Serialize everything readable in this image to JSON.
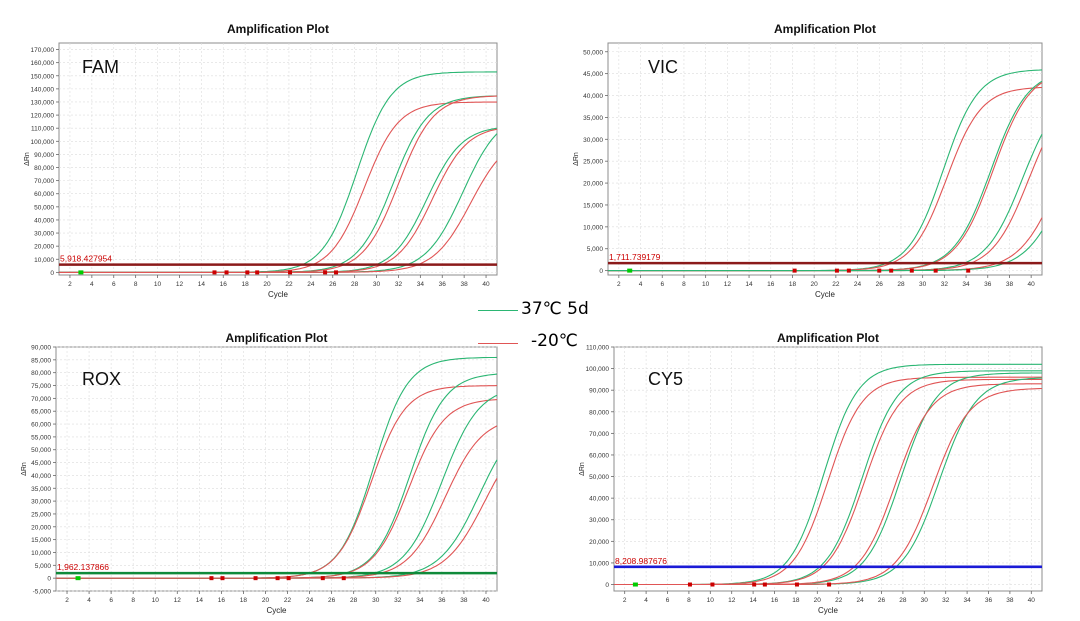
{
  "legend": {
    "items": [
      {
        "label": "37℃ 5d",
        "color": "#2bb673"
      },
      {
        "label": "-20℃",
        "color": "#e05555"
      }
    ]
  },
  "colors": {
    "series_a": "#2bb673",
    "series_b": "#e05555",
    "threshold_label": "#cc0000",
    "marker": "#cc0000",
    "baseline_marker": "#00cc00"
  },
  "chart_data": [
    {
      "type": "line",
      "title": "Amplification Plot",
      "dye": "FAM",
      "xlabel": "Cycle",
      "ylabel": "ΔRn",
      "xlim": [
        1,
        41
      ],
      "ylim": [
        -2000,
        175000
      ],
      "xticks": [
        2,
        4,
        6,
        8,
        10,
        12,
        14,
        16,
        18,
        20,
        22,
        24,
        26,
        28,
        30,
        32,
        34,
        36,
        38,
        40
      ],
      "yticks": [
        0,
        10000,
        20000,
        30000,
        40000,
        50000,
        60000,
        70000,
        80000,
        90000,
        100000,
        110000,
        120000,
        130000,
        140000,
        150000,
        160000,
        170000
      ],
      "ytick_labels": [
        "0",
        "10,000",
        "20,000",
        "30,000",
        "40,000",
        "50,000",
        "60,000",
        "70,000",
        "80,000",
        "90,000",
        "100,000",
        "110,000",
        "120,000",
        "130,000",
        "140,000",
        "150,000",
        "160,000",
        "170,000"
      ],
      "threshold": {
        "value": 5918.427954,
        "label": "5,918.427954",
        "color": "#8b1a1a"
      },
      "baseline_markers": [
        3
      ],
      "ct_markers": [
        15.2,
        16.3,
        18.2,
        19.1,
        22.1,
        25.3,
        26.3
      ],
      "series": [
        {
          "name": "37℃ 5d",
          "color": "#2bb673",
          "midpoint": 28.2,
          "slope": 1.55,
          "plateau": 153000
        },
        {
          "name": "-20℃",
          "color": "#e05555",
          "midpoint": 28.9,
          "slope": 1.55,
          "plateau": 130000
        },
        {
          "name": "37℃ 5d",
          "color": "#2bb673",
          "midpoint": 31.5,
          "slope": 1.6,
          "plateau": 135000
        },
        {
          "name": "-20℃",
          "color": "#e05555",
          "midpoint": 32.0,
          "slope": 1.6,
          "plateau": 135000
        },
        {
          "name": "37℃ 5d",
          "color": "#2bb673",
          "midpoint": 34.6,
          "slope": 1.6,
          "plateau": 112000
        },
        {
          "name": "-20℃",
          "color": "#e05555",
          "midpoint": 35.1,
          "slope": 1.6,
          "plateau": 112000
        },
        {
          "name": "37℃ 5d",
          "color": "#2bb673",
          "midpoint": 37.9,
          "slope": 1.7,
          "plateau": 123000
        },
        {
          "name": "-20℃",
          "color": "#e05555",
          "midpoint": 38.6,
          "slope": 1.7,
          "plateau": 106000
        }
      ]
    },
    {
      "type": "line",
      "title": "Amplification Plot",
      "dye": "VIC",
      "xlabel": "Cycle",
      "ylabel": "ΔRn",
      "xlim": [
        1,
        41
      ],
      "ylim": [
        -1000,
        52000
      ],
      "xticks": [
        2,
        4,
        6,
        8,
        10,
        12,
        14,
        16,
        18,
        20,
        22,
        24,
        26,
        28,
        30,
        32,
        34,
        36,
        38,
        40
      ],
      "yticks": [
        0,
        5000,
        10000,
        15000,
        20000,
        25000,
        30000,
        35000,
        40000,
        45000,
        50000
      ],
      "ytick_labels": [
        "0",
        "5,000",
        "10,000",
        "15,000",
        "20,000",
        "25,000",
        "30,000",
        "35,000",
        "40,000",
        "45,000",
        "50,000"
      ],
      "threshold": {
        "value": 1711.739179,
        "label": "1,711.739179",
        "color": "#8b1a1a"
      },
      "baseline_markers": [
        3
      ],
      "ct_markers": [
        18.2,
        22.1,
        23.2,
        26.0,
        27.1,
        29.0,
        31.2,
        34.2
      ],
      "series": [
        {
          "name": "37℃ 5d",
          "color": "#2bb673",
          "midpoint": 31.9,
          "slope": 1.6,
          "plateau": 46000
        },
        {
          "name": "-20℃",
          "color": "#e05555",
          "midpoint": 32.2,
          "slope": 1.6,
          "plateau": 42000
        },
        {
          "name": "37℃ 5d",
          "color": "#2bb673",
          "midpoint": 36.3,
          "slope": 1.7,
          "plateau": 46000
        },
        {
          "name": "-20℃",
          "color": "#e05555",
          "midpoint": 36.5,
          "slope": 1.7,
          "plateau": 46000
        },
        {
          "name": "37℃ 5d",
          "color": "#2bb673",
          "midpoint": 39.2,
          "slope": 1.7,
          "plateau": 42000
        },
        {
          "name": "-20℃",
          "color": "#e05555",
          "midpoint": 39.8,
          "slope": 1.7,
          "plateau": 42000
        },
        {
          "name": "-20℃",
          "color": "#e05555",
          "midpoint": 42.5,
          "slope": 1.8,
          "plateau": 40000
        },
        {
          "name": "37℃ 5d",
          "color": "#2bb673",
          "midpoint": 43.2,
          "slope": 1.8,
          "plateau": 40000
        }
      ]
    },
    {
      "type": "line",
      "title": "Amplification Plot",
      "dye": "ROX",
      "xlabel": "Cycle",
      "ylabel": "ΔRn",
      "xlim": [
        1,
        41
      ],
      "ylim": [
        -5000,
        90000
      ],
      "xticks": [
        2,
        4,
        6,
        8,
        10,
        12,
        14,
        16,
        18,
        20,
        22,
        24,
        26,
        28,
        30,
        32,
        34,
        36,
        38,
        40
      ],
      "yticks": [
        -5000,
        0,
        5000,
        10000,
        15000,
        20000,
        25000,
        30000,
        35000,
        40000,
        45000,
        50000,
        55000,
        60000,
        65000,
        70000,
        75000,
        80000,
        85000,
        90000
      ],
      "ytick_labels": [
        "-5,000",
        "0",
        "5,000",
        "10,000",
        "15,000",
        "20,000",
        "25,000",
        "30,000",
        "35,000",
        "40,000",
        "45,000",
        "50,000",
        "55,000",
        "60,000",
        "65,000",
        "70,000",
        "75,000",
        "80,000",
        "85,000",
        "90,000"
      ],
      "threshold": {
        "value": 1962.137866,
        "label": "1,962.137866",
        "color": "#0f8a3a"
      },
      "baseline_markers": [
        3
      ],
      "ct_markers": [
        15.1,
        16.1,
        19.1,
        21.1,
        22.1,
        25.2,
        27.1
      ],
      "series": [
        {
          "name": "37℃ 5d",
          "color": "#2bb673",
          "midpoint": 29.8,
          "slope": 1.55,
          "plateau": 86000
        },
        {
          "name": "-20℃",
          "color": "#e05555",
          "midpoint": 29.6,
          "slope": 1.55,
          "plateau": 75000
        },
        {
          "name": "37℃ 5d",
          "color": "#2bb673",
          "midpoint": 33.1,
          "slope": 1.6,
          "plateau": 80000
        },
        {
          "name": "-20℃",
          "color": "#e05555",
          "midpoint": 33.0,
          "slope": 1.6,
          "plateau": 70000
        },
        {
          "name": "37℃ 5d",
          "color": "#2bb673",
          "midpoint": 36.0,
          "slope": 1.7,
          "plateau": 75000
        },
        {
          "name": "-20℃",
          "color": "#e05555",
          "midpoint": 36.3,
          "slope": 1.7,
          "plateau": 63000
        },
        {
          "name": "37℃ 5d",
          "color": "#2bb673",
          "midpoint": 39.4,
          "slope": 1.8,
          "plateau": 65000
        },
        {
          "name": "-20℃",
          "color": "#e05555",
          "midpoint": 39.9,
          "slope": 1.8,
          "plateau": 60000
        }
      ]
    },
    {
      "type": "line",
      "title": "Amplification Plot",
      "dye": "CY5",
      "xlabel": "Cycle",
      "ylabel": "ΔRn",
      "xlim": [
        1,
        41
      ],
      "ylim": [
        -3000,
        110000
      ],
      "xticks": [
        2,
        4,
        6,
        8,
        10,
        12,
        14,
        16,
        18,
        20,
        22,
        24,
        26,
        28,
        30,
        32,
        34,
        36,
        38,
        40
      ],
      "yticks": [
        0,
        10000,
        20000,
        30000,
        40000,
        50000,
        60000,
        70000,
        80000,
        90000,
        100000,
        110000
      ],
      "ytick_labels": [
        "0",
        "10,000",
        "20,000",
        "30,000",
        "40,000",
        "50,000",
        "60,000",
        "70,000",
        "80,000",
        "90,000",
        "100,000",
        "110,000"
      ],
      "threshold": {
        "value": 8208.987676,
        "label": "8,208.987676",
        "color": "#1a1ad6"
      },
      "baseline_markers": [
        3
      ],
      "ct_markers": [
        8.1,
        10.2,
        14.1,
        15.1,
        18.1,
        21.1
      ],
      "series": [
        {
          "name": "37℃ 5d",
          "color": "#2bb673",
          "midpoint": 20.6,
          "slope": 1.6,
          "plateau": 102000
        },
        {
          "name": "-20℃",
          "color": "#e05555",
          "midpoint": 21.0,
          "slope": 1.6,
          "plateau": 96000
        },
        {
          "name": "37℃ 5d",
          "color": "#2bb673",
          "midpoint": 24.2,
          "slope": 1.65,
          "plateau": 99000
        },
        {
          "name": "-20℃",
          "color": "#e05555",
          "midpoint": 24.4,
          "slope": 1.65,
          "plateau": 95000
        },
        {
          "name": "37℃ 5d",
          "color": "#2bb673",
          "midpoint": 27.8,
          "slope": 1.65,
          "plateau": 98000
        },
        {
          "name": "-20℃",
          "color": "#e05555",
          "midpoint": 27.3,
          "slope": 1.65,
          "plateau": 93000
        },
        {
          "name": "37℃ 5d",
          "color": "#2bb673",
          "midpoint": 31.4,
          "slope": 1.7,
          "plateau": 96000
        },
        {
          "name": "-20℃",
          "color": "#e05555",
          "midpoint": 30.8,
          "slope": 1.7,
          "plateau": 91000
        }
      ]
    }
  ]
}
